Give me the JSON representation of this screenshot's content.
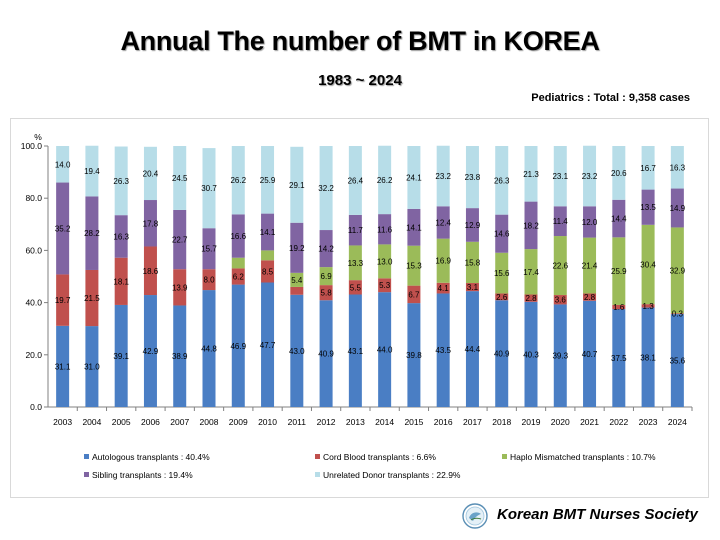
{
  "title": "Annual The number of BMT in KOREA",
  "subtitle": "1983 ~ 2024",
  "note": "Pediatrics : Total : 9,358 cases",
  "organization": "Korean BMT Nurses Society",
  "chart_data": {
    "type": "bar",
    "stacked": true,
    "ylabel": "%",
    "ylim": [
      0,
      100
    ],
    "yticks": [
      "0.0",
      "20.0",
      "40.0",
      "60.0",
      "80.0",
      "100.0"
    ],
    "categories": [
      "2003",
      "2004",
      "2005",
      "2006",
      "2007",
      "2008",
      "2009",
      "2010",
      "2011",
      "2012",
      "2013",
      "2014",
      "2015",
      "2016",
      "2017",
      "2018",
      "2019",
      "2020",
      "2021",
      "2022",
      "2023",
      "2024"
    ],
    "series": [
      {
        "key": "auto",
        "name": "Autologous transplants : 40.4%",
        "color": "#4a7ec4",
        "values": [
          31.1,
          31.0,
          39.1,
          42.9,
          38.9,
          44.8,
          46.9,
          47.7,
          43.0,
          40.9,
          43.1,
          44.0,
          39.8,
          43.5,
          44.4,
          40.9,
          40.3,
          39.3,
          40.7,
          37.5,
          38.1,
          35.6
        ],
        "labels": [
          "31.1",
          "31.0",
          "39.1",
          "42.9",
          "38.9",
          "44.8",
          "46.9",
          "47.7",
          "43.0",
          "40.9",
          "43.1",
          "44.0",
          "39.8",
          "43.5",
          "44.4",
          "40.9",
          "40.3",
          "39.3",
          "40.7",
          "37.5",
          "38.1",
          "35.6"
        ]
      },
      {
        "key": "cord",
        "name": "Cord Blood transplants : 6.6%",
        "color": "#c0504d",
        "values": [
          19.7,
          21.5,
          18.1,
          18.6,
          13.9,
          8.0,
          6.2,
          8.5,
          3.0,
          5.8,
          5.5,
          5.3,
          6.7,
          4.1,
          3.1,
          2.6,
          2.8,
          3.6,
          2.8,
          1.6,
          1.3,
          0.3
        ],
        "labels": [
          "19.7",
          "21.5",
          "18.1",
          "18.6",
          "13.9",
          "8.0",
          "6.2",
          "8.5",
          "",
          "5.8",
          "5.5",
          "5.3",
          "6.7",
          "4.1",
          "3.1",
          "2.6",
          "2.8",
          "3.6",
          "2.8",
          "1.6",
          "1.3",
          "0.3"
        ]
      },
      {
        "key": "haplo",
        "name": "Haplo Mismatched transplants : 10.7%",
        "color": "#9bbb59",
        "values": [
          0,
          0,
          0,
          0,
          0,
          0,
          4.1,
          3.8,
          5.4,
          6.9,
          13.3,
          13.0,
          15.3,
          16.9,
          15.8,
          15.6,
          17.4,
          22.6,
          21.4,
          25.9,
          30.4,
          32.9
        ],
        "labels": [
          "",
          "",
          "",
          "",
          "",
          "",
          "",
          "",
          "5.4",
          "6.9",
          "13.3",
          "13.0",
          "15.3",
          "16.9",
          "15.8",
          "15.6",
          "17.4",
          "22.6",
          "21.4",
          "25.9",
          "30.4",
          "32.9"
        ]
      },
      {
        "key": "sib",
        "name": "Sibling transplants : 19.4%",
        "color": "#8064a2",
        "values": [
          35.2,
          28.2,
          16.3,
          17.8,
          22.7,
          15.7,
          16.6,
          14.1,
          19.2,
          14.2,
          11.7,
          11.6,
          14.1,
          12.4,
          12.9,
          14.6,
          18.2,
          11.4,
          12.0,
          14.4,
          13.5,
          14.9
        ],
        "labels": [
          "35.2",
          "28.2",
          "16.3",
          "17.8",
          "22.7",
          "15.7",
          "16.6",
          "14.1",
          "19.2",
          "14.2",
          "11.7",
          "11.6",
          "14.1",
          "12.4",
          "12.9",
          "14.6",
          "18.2",
          "11.4",
          "12.0",
          "14.4",
          "13.5",
          "14.9"
        ]
      },
      {
        "key": "unrel",
        "name": "Unrelated  Donor  transplants : 22.9%",
        "color": "#b7dde8",
        "values": [
          14.0,
          19.4,
          26.3,
          20.4,
          24.5,
          30.7,
          26.2,
          25.9,
          29.1,
          32.2,
          26.4,
          26.2,
          24.1,
          23.2,
          23.8,
          26.3,
          21.3,
          23.1,
          23.2,
          20.6,
          16.7,
          16.3
        ],
        "labels": [
          "14.0",
          "19.4",
          "26.3",
          "20.4",
          "24.5",
          "30.7",
          "26.2",
          "25.9",
          "29.1",
          "32.2",
          "26.4",
          "26.2",
          "24.1",
          "23.2",
          "23.8",
          "26.3",
          "21.3",
          "23.1",
          "23.2",
          "20.6",
          "16.7",
          "16.3"
        ]
      }
    ],
    "legend_position": "bottom",
    "grid": false
  }
}
